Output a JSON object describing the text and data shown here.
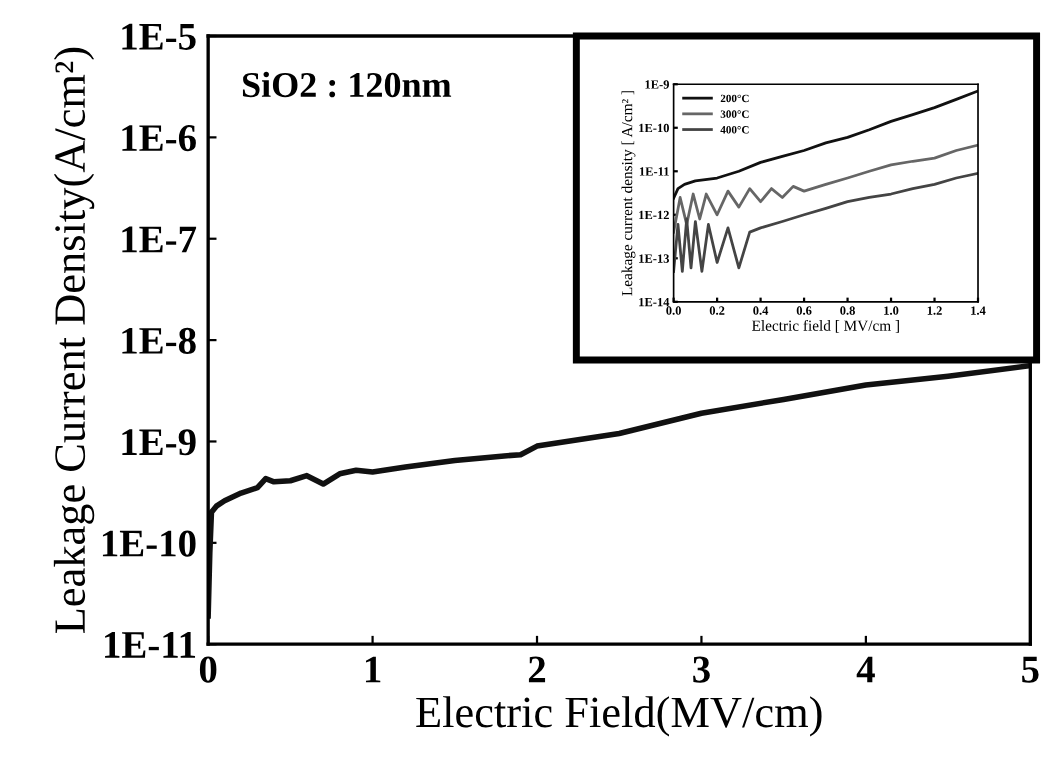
{
  "chart_data": [
    {
      "type": "line",
      "xlabel": "Electric Field(MV/cm)",
      "ylabel": "Leakage Current Density(A/cm²)",
      "log": "y",
      "annotations": [
        "SiO2 : 120nm"
      ],
      "grid": false,
      "legend": false,
      "xlim": [
        0,
        5
      ],
      "xticks": [
        0,
        1,
        2,
        3,
        4,
        5
      ],
      "ylim": [
        1e-11,
        1e-05
      ],
      "yticks": [
        {
          "value": 1e-11,
          "label": "1E-11"
        },
        {
          "value": 1e-10,
          "label": "1E-10"
        },
        {
          "value": 1e-09,
          "label": "1E-9"
        },
        {
          "value": 1e-08,
          "label": "1E-8"
        },
        {
          "value": 1e-07,
          "label": "1E-7"
        },
        {
          "value": 1e-06,
          "label": "1E-6"
        },
        {
          "value": 1e-05,
          "label": "1E-5"
        }
      ],
      "series": [
        {
          "color": "#111111",
          "x": [
            0,
            0.01,
            0.02,
            0.05,
            0.1,
            0.2,
            0.3,
            0.35,
            0.4,
            0.5,
            0.6,
            0.7,
            0.8,
            0.9,
            1.0,
            1.2,
            1.5,
            1.8,
            1.9,
            2.0,
            2.5,
            3.0,
            3.5,
            4.0,
            4.5,
            5.0
          ],
          "values": [
            1.9e-11,
            8e-11,
            2e-10,
            2.3e-10,
            2.6e-10,
            3.1e-10,
            3.5e-10,
            4.3e-10,
            4e-10,
            4.1e-10,
            4.6e-10,
            3.8e-10,
            4.8e-10,
            5.2e-10,
            5e-10,
            5.6e-10,
            6.5e-10,
            7.2e-10,
            7.4e-10,
            9e-10,
            1.2e-09,
            1.9e-09,
            2.6e-09,
            3.6e-09,
            4.4e-09,
            5.6e-09
          ]
        }
      ]
    },
    {
      "type": "line",
      "xlabel": "Electric field [ MV/cm ]",
      "ylabel": "Leakage current density [ A/cm² ]",
      "log": "y",
      "grid": false,
      "legend": "top left",
      "xlim": [
        0,
        1.4
      ],
      "xticks": [
        {
          "value": 0,
          "label": "0.0"
        },
        {
          "value": 0.2,
          "label": "0.2"
        },
        {
          "value": 0.4,
          "label": "0.4"
        },
        {
          "value": 0.6,
          "label": "0.6"
        },
        {
          "value": 0.8,
          "label": "0.8"
        },
        {
          "value": 1.0,
          "label": "1.0"
        },
        {
          "value": 1.2,
          "label": "1.2"
        },
        {
          "value": 1.4,
          "label": "1.4"
        }
      ],
      "ylim": [
        1e-14,
        1e-09
      ],
      "yticks": [
        {
          "value": 1e-14,
          "label": "1E-14"
        },
        {
          "value": 1e-13,
          "label": "1E-13"
        },
        {
          "value": 1e-12,
          "label": "1E-12"
        },
        {
          "value": 1e-11,
          "label": "1E-11"
        },
        {
          "value": 1e-10,
          "label": "1E-10"
        },
        {
          "value": 1e-09,
          "label": "1E-9"
        }
      ],
      "series": [
        {
          "name": "200°C",
          "color": "#111111",
          "x": [
            0,
            0.02,
            0.05,
            0.1,
            0.2,
            0.3,
            0.4,
            0.5,
            0.6,
            0.7,
            0.8,
            0.9,
            1.0,
            1.1,
            1.2,
            1.3,
            1.4
          ],
          "values": [
            2.4e-12,
            4e-12,
            5e-12,
            6e-12,
            7e-12,
            1e-11,
            1.6e-11,
            2.2e-11,
            3e-11,
            4.5e-11,
            6e-11,
            9e-11,
            1.4e-10,
            2e-10,
            2.9e-10,
            4.5e-10,
            7e-10
          ]
        },
        {
          "name": "300°C",
          "color": "#666666",
          "x": [
            0,
            0.03,
            0.06,
            0.09,
            0.12,
            0.15,
            0.2,
            0.25,
            0.3,
            0.35,
            0.4,
            0.45,
            0.5,
            0.55,
            0.6,
            0.7,
            0.8,
            0.9,
            1.0,
            1.1,
            1.2,
            1.3,
            1.4
          ],
          "values": [
            4e-13,
            2.5e-12,
            6e-13,
            3e-12,
            8e-13,
            3e-12,
            1e-12,
            3.5e-12,
            1.5e-12,
            4e-12,
            2e-12,
            4e-12,
            2.5e-12,
            4.5e-12,
            3.5e-12,
            5e-12,
            7e-12,
            1e-11,
            1.4e-11,
            1.7e-11,
            2e-11,
            3e-11,
            4e-11
          ]
        },
        {
          "name": "400°C",
          "color": "#444444",
          "x": [
            0,
            0.02,
            0.04,
            0.06,
            0.08,
            0.1,
            0.13,
            0.16,
            0.2,
            0.25,
            0.3,
            0.35,
            0.4,
            0.5,
            0.6,
            0.7,
            0.8,
            0.9,
            1.0,
            1.1,
            1.2,
            1.3,
            1.4
          ],
          "values": [
            5e-14,
            6e-13,
            5e-14,
            8e-13,
            6e-14,
            7e-13,
            5e-14,
            6e-13,
            8e-14,
            5e-13,
            6e-14,
            4e-13,
            5e-13,
            7e-13,
            1e-12,
            1.4e-12,
            2e-12,
            2.5e-12,
            3e-12,
            4e-12,
            5e-12,
            7e-12,
            9e-12
          ]
        }
      ]
    }
  ]
}
